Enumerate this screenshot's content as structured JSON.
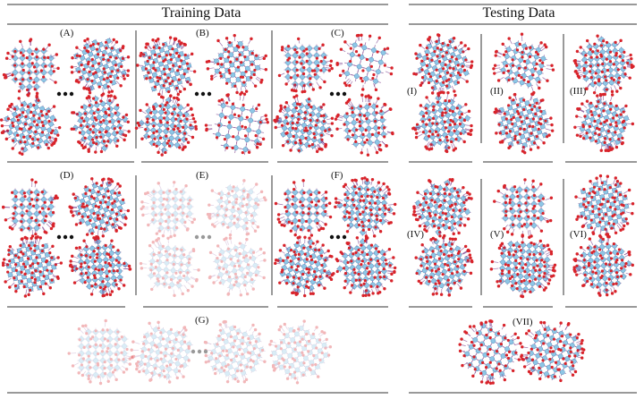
{
  "sections": {
    "training_title": "Training Data",
    "testing_title": "Testing Data"
  },
  "training_panels": [
    {
      "id": "A",
      "label": "(A)",
      "faded": false
    },
    {
      "id": "B",
      "label": "(B)",
      "faded": false
    },
    {
      "id": "C",
      "label": "(C)",
      "faded": false
    },
    {
      "id": "D",
      "label": "(D)",
      "faded": false
    },
    {
      "id": "E",
      "label": "(E)",
      "faded": true
    },
    {
      "id": "F",
      "label": "(F)",
      "faded": false
    },
    {
      "id": "G",
      "label": "(G)",
      "faded": true
    }
  ],
  "testing_panels": [
    {
      "id": "I",
      "label": "(I)"
    },
    {
      "id": "II",
      "label": "(II)"
    },
    {
      "id": "III",
      "label": "(III)"
    },
    {
      "id": "IV",
      "label": "(IV)"
    },
    {
      "id": "V",
      "label": "(V)"
    },
    {
      "id": "VI",
      "label": "(VI)"
    },
    {
      "id": "VII",
      "label": "(VII)"
    }
  ],
  "colors": {
    "atom_blue": "#8ec6e6",
    "atom_blue_edge": "#4f8fb8",
    "atom_red": "#d8232a",
    "bond": "#7a3b8a",
    "divider": "#333333"
  }
}
